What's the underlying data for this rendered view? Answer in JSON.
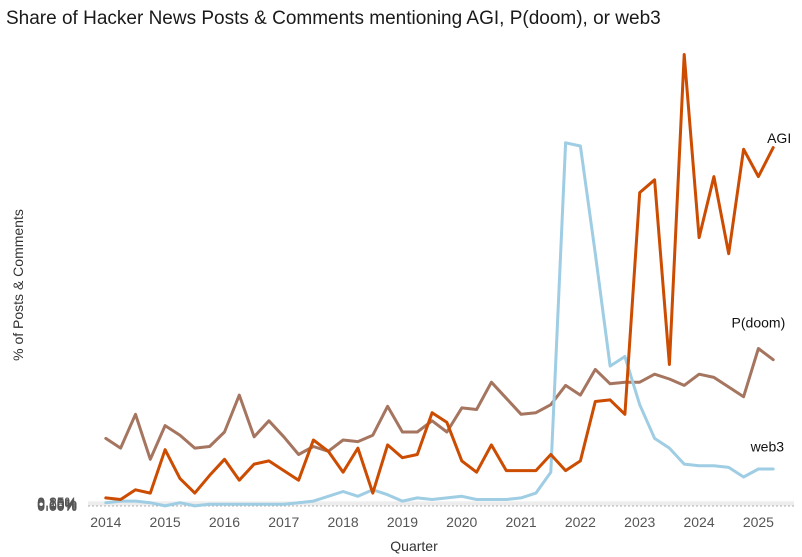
{
  "chart_data": {
    "type": "line",
    "title": "Share of Hacker News Posts & Comments mentioning AGI, P(doom), or web3",
    "xlabel": "Quarter",
    "ylabel": "% of Posts & Comments",
    "x_ticks": [
      "2014",
      "2015",
      "2016",
      "2017",
      "2018",
      "2019",
      "2020",
      "2021",
      "2022",
      "2023",
      "2024",
      "2025"
    ],
    "y_ticks": [
      "0.00%",
      "0.05%",
      "0.10%",
      "0.15%",
      "0.20%",
      "0.25%"
    ],
    "xlim": [
      2013.7,
      2025.6
    ],
    "ylim": [
      -0.0013,
      0.29
    ],
    "grid": "horizontal",
    "legend": "direct-labels",
    "series": [
      {
        "name": "P(doom)",
        "color": "#a57560",
        "x": [
          2014.0,
          2014.25,
          2014.5,
          2014.75,
          2015.0,
          2015.25,
          2015.5,
          2015.75,
          2016.0,
          2016.25,
          2016.5,
          2016.75,
          2017.0,
          2017.25,
          2017.5,
          2017.75,
          2018.0,
          2018.25,
          2018.5,
          2018.75,
          2019.0,
          2019.25,
          2019.5,
          2019.75,
          2020.0,
          2020.25,
          2020.5,
          2020.75,
          2021.0,
          2021.25,
          2021.5,
          2021.75,
          2022.0,
          2022.25,
          2022.5,
          2022.75,
          2023.0,
          2023.25,
          2023.5,
          2023.75,
          2024.0,
          2024.25,
          2024.5,
          2024.75,
          2025.0,
          2025.25
        ],
        "values": [
          0.042,
          0.036,
          0.057,
          0.029,
          0.05,
          0.044,
          0.036,
          0.037,
          0.046,
          0.069,
          0.043,
          0.053,
          0.043,
          0.032,
          0.037,
          0.034,
          0.041,
          0.04,
          0.044,
          0.062,
          0.046,
          0.046,
          0.053,
          0.046,
          0.061,
          0.06,
          0.077,
          0.067,
          0.057,
          0.058,
          0.063,
          0.075,
          0.069,
          0.085,
          0.076,
          0.077,
          0.077,
          0.082,
          0.079,
          0.075,
          0.082,
          0.08,
          0.074,
          0.068,
          0.098,
          0.091
        ]
      },
      {
        "name": "web3",
        "color": "#9ecde4",
        "x": [
          2014.0,
          2014.25,
          2014.5,
          2014.75,
          2015.0,
          2015.25,
          2015.5,
          2015.75,
          2016.0,
          2016.25,
          2016.5,
          2016.75,
          2017.0,
          2017.25,
          2017.5,
          2017.75,
          2018.0,
          2018.25,
          2018.5,
          2018.75,
          2019.0,
          2019.25,
          2019.5,
          2019.75,
          2020.0,
          2020.25,
          2020.5,
          2020.75,
          2021.0,
          2021.25,
          2021.5,
          2021.75,
          2022.0,
          2022.25,
          2022.5,
          2022.75,
          2023.0,
          2023.25,
          2023.5,
          2023.75,
          2024.0,
          2024.25,
          2024.5,
          2024.75,
          2025.0,
          2025.25
        ],
        "values": [
          0.002,
          0.003,
          0.003,
          0.002,
          0.0,
          0.002,
          0.0,
          0.001,
          0.001,
          0.001,
          0.001,
          0.001,
          0.001,
          0.002,
          0.003,
          0.006,
          0.009,
          0.006,
          0.01,
          0.007,
          0.003,
          0.005,
          0.004,
          0.005,
          0.006,
          0.004,
          0.004,
          0.004,
          0.005,
          0.008,
          0.021,
          0.226,
          0.224,
          0.157,
          0.087,
          0.093,
          0.063,
          0.042,
          0.036,
          0.026,
          0.025,
          0.025,
          0.024,
          0.018,
          0.023,
          0.023
        ]
      },
      {
        "name": "AGI",
        "color": "#cc4c02",
        "x": [
          2014.0,
          2014.25,
          2014.5,
          2014.75,
          2015.0,
          2015.25,
          2015.5,
          2015.75,
          2016.0,
          2016.25,
          2016.5,
          2016.75,
          2017.0,
          2017.25,
          2017.5,
          2017.75,
          2018.0,
          2018.25,
          2018.5,
          2018.75,
          2019.0,
          2019.25,
          2019.5,
          2019.75,
          2020.0,
          2020.25,
          2020.5,
          2020.75,
          2021.0,
          2021.25,
          2021.5,
          2021.75,
          2022.0,
          2022.25,
          2022.5,
          2022.75,
          2023.0,
          2023.25,
          2023.5,
          2023.75,
          2024.0,
          2024.25,
          2024.5,
          2024.75,
          2025.0,
          2025.25
        ],
        "values": [
          0.005,
          0.004,
          0.01,
          0.008,
          0.035,
          0.017,
          0.008,
          0.019,
          0.029,
          0.016,
          0.026,
          0.028,
          0.022,
          0.016,
          0.041,
          0.034,
          0.021,
          0.036,
          0.008,
          0.038,
          0.03,
          0.032,
          0.058,
          0.052,
          0.028,
          0.021,
          0.038,
          0.022,
          0.022,
          0.022,
          0.032,
          0.022,
          0.028,
          0.065,
          0.066,
          0.057,
          0.195,
          0.203,
          0.088,
          0.281,
          0.167,
          0.205,
          0.157,
          0.222,
          0.205,
          0.223
        ]
      }
    ],
    "annotations": [
      {
        "text": "AGI",
        "x": 2025.35,
        "y": 0.226
      },
      {
        "text": "P(doom)",
        "x": 2025.0,
        "y": 0.111
      },
      {
        "text": "web3",
        "x": 2025.15,
        "y": 0.034
      }
    ]
  }
}
